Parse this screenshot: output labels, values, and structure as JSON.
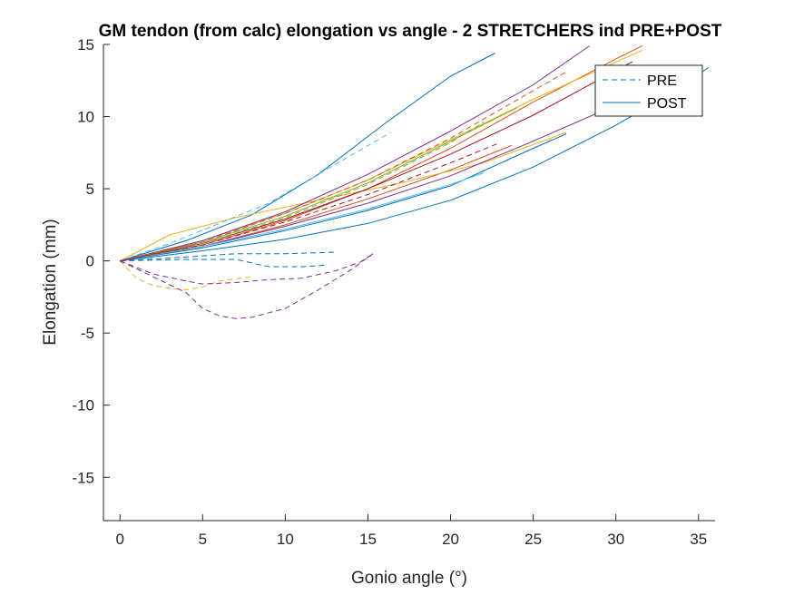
{
  "chart_data": {
    "type": "line",
    "title": "GM tendon (from calc) elongation vs angle - 2 STRETCHERS ind PRE+POST",
    "xlabel": "Gonio angle (°)",
    "ylabel": "Elongation (mm)",
    "xlim": [
      -1,
      36
    ],
    "ylim": [
      -18,
      15
    ],
    "xticks": [
      0,
      5,
      10,
      15,
      20,
      25,
      30,
      35
    ],
    "yticks": [
      -15,
      -10,
      -5,
      0,
      5,
      10,
      15
    ],
    "grid": false,
    "legend": {
      "position": "top-right",
      "entries": [
        {
          "label": "PRE",
          "style": "dashed",
          "color": "#0072BD"
        },
        {
          "label": "POST",
          "style": "solid",
          "color": "#0072BD"
        }
      ]
    },
    "series": [
      {
        "style": "solid",
        "color": "#0072BD",
        "points": [
          [
            0,
            0
          ],
          [
            4,
            1.4
          ],
          [
            8,
            3.2
          ],
          [
            12,
            6
          ],
          [
            16,
            9.5
          ],
          [
            20,
            12.8
          ],
          [
            22.7,
            14.4
          ]
        ]
      },
      {
        "style": "solid",
        "color": "#0072BD",
        "points": [
          [
            0,
            0
          ],
          [
            5,
            0.7
          ],
          [
            10,
            1.5
          ],
          [
            15,
            2.6
          ],
          [
            20,
            4.2
          ],
          [
            25,
            6.5
          ],
          [
            30,
            9.4
          ],
          [
            33,
            11.4
          ],
          [
            35.6,
            13.4
          ]
        ]
      },
      {
        "style": "solid",
        "color": "#0072BD",
        "points": [
          [
            0,
            0
          ],
          [
            5,
            0.9
          ],
          [
            10,
            2.1
          ],
          [
            15,
            3.5
          ],
          [
            20,
            5.2
          ],
          [
            25,
            7.8
          ],
          [
            27,
            8.8
          ]
        ]
      },
      {
        "style": "solid",
        "color": "#D95319",
        "points": [
          [
            0,
            0
          ],
          [
            5,
            1.1
          ],
          [
            10,
            2.8
          ],
          [
            15,
            5
          ],
          [
            20,
            7.8
          ],
          [
            25,
            11
          ],
          [
            30,
            14
          ],
          [
            31.6,
            14.9
          ]
        ]
      },
      {
        "style": "solid",
        "color": "#D95319",
        "points": [
          [
            0,
            0
          ],
          [
            5,
            1
          ],
          [
            10,
            2.5
          ],
          [
            15,
            4.3
          ],
          [
            20,
            6.3
          ],
          [
            23.7,
            8
          ]
        ]
      },
      {
        "style": "solid",
        "color": "#EDB120",
        "points": [
          [
            0,
            0
          ],
          [
            3,
            1.8
          ],
          [
            7,
            3
          ],
          [
            12,
            4.2
          ],
          [
            17,
            5.4
          ],
          [
            22,
            6.8
          ],
          [
            27,
            8.9
          ]
        ]
      },
      {
        "style": "solid",
        "color": "#EDB120",
        "points": [
          [
            0,
            0
          ],
          [
            5,
            1.4
          ],
          [
            10,
            3.3
          ],
          [
            15,
            5.6
          ],
          [
            20,
            8.4
          ],
          [
            25,
            11.2
          ],
          [
            31.6,
            14.6
          ]
        ]
      },
      {
        "style": "solid",
        "color": "#7E2F8E",
        "points": [
          [
            0,
            0
          ],
          [
            5,
            1.4
          ],
          [
            10,
            3.4
          ],
          [
            15,
            6
          ],
          [
            20,
            9
          ],
          [
            25,
            12.2
          ],
          [
            28.4,
            14.9
          ]
        ]
      },
      {
        "style": "solid",
        "color": "#7E2F8E",
        "points": [
          [
            0,
            0
          ],
          [
            5,
            1
          ],
          [
            10,
            2.4
          ],
          [
            15,
            4
          ],
          [
            20,
            5.9
          ],
          [
            25,
            8.3
          ],
          [
            30,
            10.8
          ]
        ]
      },
      {
        "style": "solid",
        "color": "#77AC30",
        "points": [
          [
            0,
            0
          ],
          [
            5,
            1.3
          ],
          [
            10,
            3.1
          ],
          [
            15,
            5.4
          ],
          [
            20,
            8.3
          ],
          [
            24,
            10.6
          ]
        ]
      },
      {
        "style": "solid",
        "color": "#4DBEEE",
        "points": [
          [
            0,
            0
          ],
          [
            5,
            1
          ],
          [
            10,
            2.2
          ],
          [
            15,
            3.6
          ],
          [
            20,
            5.3
          ],
          [
            22,
            6.1
          ]
        ]
      },
      {
        "style": "solid",
        "color": "#A2142F",
        "points": [
          [
            0,
            0
          ],
          [
            5,
            1.2
          ],
          [
            10,
            2.9
          ],
          [
            15,
            5
          ],
          [
            20,
            7.4
          ],
          [
            25,
            10.1
          ],
          [
            31,
            13.8
          ]
        ]
      },
      {
        "style": "dashed",
        "color": "#4DBEEE",
        "points": [
          [
            0,
            0
          ],
          [
            3,
            1.2
          ],
          [
            6,
            2.6
          ],
          [
            9,
            4
          ],
          [
            12,
            6
          ],
          [
            15,
            8
          ],
          [
            16.4,
            8.9
          ]
        ]
      },
      {
        "style": "dashed",
        "color": "#0072BD",
        "points": [
          [
            0,
            0
          ],
          [
            3,
            0.2
          ],
          [
            7,
            0.5
          ],
          [
            10,
            0.5
          ],
          [
            13,
            0.6
          ]
        ]
      },
      {
        "style": "dashed",
        "color": "#0072BD",
        "points": [
          [
            0,
            0
          ],
          [
            4,
            0.1
          ],
          [
            7,
            0.1
          ],
          [
            9,
            -0.4
          ],
          [
            11,
            -0.4
          ],
          [
            12.5,
            -0.3
          ]
        ]
      },
      {
        "style": "dashed",
        "color": "#EDB120",
        "points": [
          [
            0,
            0
          ],
          [
            1,
            -1.2
          ],
          [
            2,
            -1.7
          ],
          [
            3,
            -1.9
          ],
          [
            4,
            -2
          ],
          [
            5,
            -1.8
          ],
          [
            6,
            -1.4
          ],
          [
            8,
            -1.1
          ]
        ]
      },
      {
        "style": "dashed",
        "color": "#7E2F8E",
        "points": [
          [
            0,
            0
          ],
          [
            2,
            -0.9
          ],
          [
            4,
            -1.4
          ],
          [
            5,
            -1.6
          ],
          [
            7,
            -1.5
          ],
          [
            9,
            -1.3
          ],
          [
            11,
            -1.2
          ],
          [
            13,
            -0.7
          ],
          [
            14.5,
            -0.1
          ],
          [
            15.2,
            0.4
          ]
        ]
      },
      {
        "style": "dashed",
        "color": "#7E2F8E",
        "points": [
          [
            0,
            0
          ],
          [
            2,
            -1.1
          ],
          [
            4,
            -2.2
          ],
          [
            5,
            -3.3
          ],
          [
            6,
            -3.8
          ],
          [
            7,
            -4
          ],
          [
            8,
            -3.9
          ],
          [
            10,
            -3.3
          ],
          [
            12,
            -2
          ],
          [
            14,
            -0.6
          ],
          [
            15.3,
            0.5
          ]
        ]
      },
      {
        "style": "dashed",
        "color": "#D95319",
        "points": [
          [
            0,
            0
          ],
          [
            5,
            1.3
          ],
          [
            10,
            3.3
          ],
          [
            15,
            5.6
          ],
          [
            20,
            8.5
          ],
          [
            25,
            11.8
          ],
          [
            27,
            13.1
          ]
        ]
      },
      {
        "style": "dashed",
        "color": "#77AC30",
        "points": [
          [
            0,
            0
          ],
          [
            5,
            1.2
          ],
          [
            10,
            3
          ],
          [
            15,
            5.3
          ],
          [
            20,
            8.2
          ],
          [
            22,
            9.6
          ]
        ]
      },
      {
        "style": "dashed",
        "color": "#A2142F",
        "points": [
          [
            0,
            0
          ],
          [
            5,
            1.1
          ],
          [
            10,
            2.7
          ],
          [
            15,
            4.6
          ],
          [
            20,
            6.8
          ],
          [
            23,
            8.2
          ]
        ]
      }
    ]
  }
}
